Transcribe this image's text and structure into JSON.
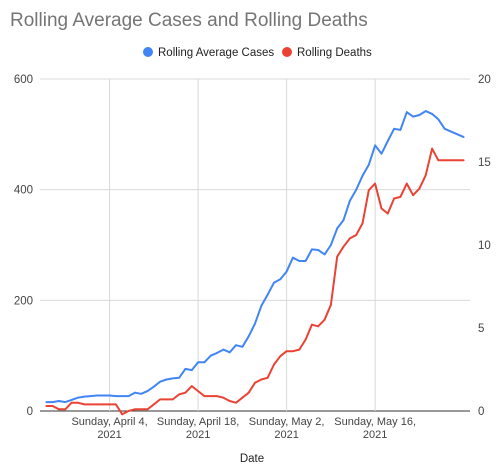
{
  "chart_data": {
    "type": "line",
    "title": "Rolling Average Cases and Rolling Deaths",
    "xlabel": "Date",
    "ylabel": "",
    "y2label": "",
    "legend_position": "top",
    "grid": true,
    "x_ticks": [
      {
        "date": "2021-04-04",
        "line1": "Sunday, April 4,",
        "line2": "2021"
      },
      {
        "date": "2021-04-18",
        "line1": "Sunday, April 18,",
        "line2": "2021"
      },
      {
        "date": "2021-05-02",
        "line1": "Sunday, May 2,",
        "line2": "2021"
      },
      {
        "date": "2021-05-16",
        "line1": "Sunday, May 16,",
        "line2": "2021"
      }
    ],
    "xlim": [
      "2021-03-24",
      "2021-05-31"
    ],
    "ylim": [
      0,
      600
    ],
    "y_ticks": [
      "0",
      "200",
      "400",
      "600"
    ],
    "y2lim": [
      0,
      20
    ],
    "y2_ticks": [
      "0",
      "5",
      "10",
      "15",
      "20"
    ],
    "x": [
      "2021-03-25",
      "2021-03-26",
      "2021-03-27",
      "2021-03-28",
      "2021-03-29",
      "2021-03-30",
      "2021-03-31",
      "2021-04-01",
      "2021-04-02",
      "2021-04-03",
      "2021-04-04",
      "2021-04-05",
      "2021-04-06",
      "2021-04-07",
      "2021-04-08",
      "2021-04-09",
      "2021-04-10",
      "2021-04-11",
      "2021-04-12",
      "2021-04-13",
      "2021-04-14",
      "2021-04-15",
      "2021-04-16",
      "2021-04-17",
      "2021-04-18",
      "2021-04-19",
      "2021-04-20",
      "2021-04-21",
      "2021-04-22",
      "2021-04-23",
      "2021-04-24",
      "2021-04-25",
      "2021-04-26",
      "2021-04-27",
      "2021-04-28",
      "2021-04-29",
      "2021-04-30",
      "2021-05-01",
      "2021-05-02",
      "2021-05-03",
      "2021-05-04",
      "2021-05-05",
      "2021-05-06",
      "2021-05-07",
      "2021-05-08",
      "2021-05-09",
      "2021-05-10",
      "2021-05-11",
      "2021-05-12",
      "2021-05-13",
      "2021-05-14",
      "2021-05-15",
      "2021-05-16",
      "2021-05-17",
      "2021-05-18",
      "2021-05-19",
      "2021-05-20",
      "2021-05-21",
      "2021-05-22",
      "2021-05-23",
      "2021-05-24",
      "2021-05-25",
      "2021-05-26",
      "2021-05-27",
      "2021-05-28",
      "2021-05-29",
      "2021-05-30"
    ],
    "series": [
      {
        "name": "Rolling Average Cases",
        "axis": "left",
        "color": "#4285f4",
        "values": [
          16,
          16,
          18,
          16,
          20,
          24,
          26,
          27,
          28,
          28,
          28,
          27,
          27,
          27,
          33,
          31,
          36,
          44,
          53,
          57,
          59,
          60,
          76,
          74,
          88,
          88,
          100,
          105,
          111,
          106,
          119,
          116,
          135,
          158,
          190,
          210,
          232,
          238,
          252,
          277,
          271,
          271,
          292,
          291,
          283,
          300,
          330,
          345,
          380,
          400,
          425,
          445,
          480,
          465,
          488,
          510,
          508,
          540,
          532,
          535,
          542,
          537,
          527,
          510,
          505,
          500,
          495
        ]
      },
      {
        "name": "Rolling Deaths",
        "axis": "right",
        "color": "#ea4335",
        "values": [
          0.3,
          0.3,
          0.1,
          0.1,
          0.5,
          0.5,
          0.4,
          0.4,
          0.4,
          0.4,
          0.4,
          0.4,
          -0.2,
          0.0,
          0.1,
          0.1,
          0.1,
          0.4,
          0.7,
          0.7,
          0.7,
          1.0,
          1.1,
          1.5,
          1.2,
          0.9,
          0.9,
          0.9,
          0.8,
          0.6,
          0.5,
          0.8,
          1.1,
          1.7,
          1.9,
          2.0,
          2.8,
          3.3,
          3.6,
          3.6,
          3.7,
          4.3,
          5.2,
          5.1,
          5.5,
          6.4,
          9.3,
          9.9,
          10.4,
          10.6,
          11.3,
          13.3,
          13.7,
          12.2,
          11.9,
          12.8,
          12.9,
          13.7,
          13.0,
          13.4,
          14.2,
          15.8,
          15.1,
          15.1,
          15.1,
          15.1,
          15.1
        ]
      }
    ]
  }
}
